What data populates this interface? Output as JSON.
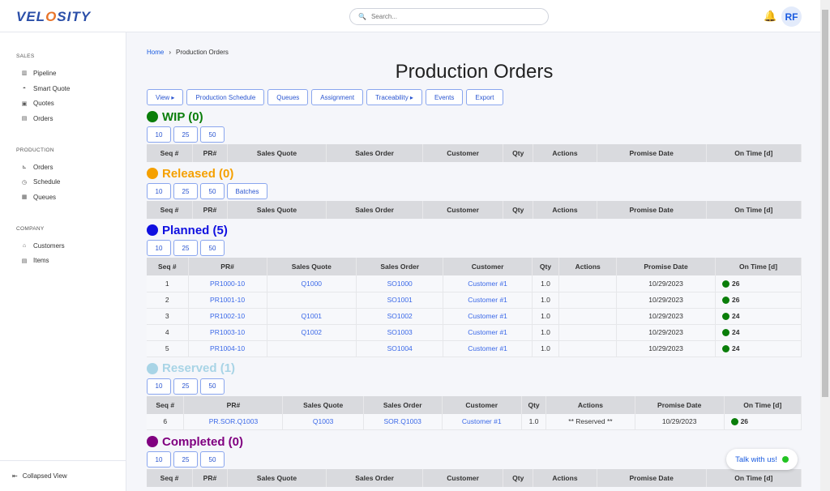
{
  "header": {
    "logo": "VELOSITY",
    "search_placeholder": "Search...",
    "avatar": "RF"
  },
  "sidebar": {
    "groups": [
      {
        "label": "SALES",
        "items": [
          {
            "label": "Pipeline",
            "icon": "pipeline-icon"
          },
          {
            "label": "Smart Quote",
            "icon": "smart-quote-icon"
          },
          {
            "label": "Quotes",
            "icon": "quotes-icon"
          },
          {
            "label": "Orders",
            "icon": "orders-icon"
          }
        ]
      },
      {
        "label": "PRODUCTION",
        "items": [
          {
            "label": "Orders",
            "icon": "cart-icon"
          },
          {
            "label": "Schedule",
            "icon": "clock-icon"
          },
          {
            "label": "Queues",
            "icon": "calendar-icon"
          }
        ]
      },
      {
        "label": "COMPANY",
        "items": [
          {
            "label": "Customers",
            "icon": "home-icon"
          },
          {
            "label": "Items",
            "icon": "items-icon"
          }
        ]
      }
    ],
    "footer": "Collapsed View"
  },
  "breadcrumb": {
    "home": "Home",
    "current": "Production Orders"
  },
  "page_title": "Production Orders",
  "toolbar": [
    "View ▸",
    "Production Schedule",
    "Queues",
    "Assignment",
    "Traceability ▸",
    "Events",
    "Export"
  ],
  "columns": [
    "Seq #",
    "PR#",
    "Sales Quote",
    "Sales Order",
    "Customer",
    "Qty",
    "Actions",
    "Promise Date",
    "On Time [d]"
  ],
  "sections": [
    {
      "title": "WIP (0)",
      "color": "#0a7e0a",
      "pager": [
        "10",
        "25",
        "50"
      ],
      "rows": []
    },
    {
      "title": "Released (0)",
      "color": "#f5a000",
      "pager": [
        "10",
        "25",
        "50",
        "Batches"
      ],
      "rows": []
    },
    {
      "title": "Planned (5)",
      "color": "#1010e0",
      "pager": [
        "10",
        "25",
        "50"
      ],
      "rows": [
        [
          "1",
          "PR1000-10",
          "Q1000",
          "SO1000",
          "Customer #1",
          "1.0",
          "",
          "10/29/2023",
          "26"
        ],
        [
          "2",
          "PR1001-10",
          "",
          "SO1001",
          "Customer #1",
          "1.0",
          "",
          "10/29/2023",
          "26"
        ],
        [
          "3",
          "PR1002-10",
          "Q1001",
          "SO1002",
          "Customer #1",
          "1.0",
          "",
          "10/29/2023",
          "24"
        ],
        [
          "4",
          "PR1003-10",
          "Q1002",
          "SO1003",
          "Customer #1",
          "1.0",
          "",
          "10/29/2023",
          "24"
        ],
        [
          "5",
          "PR1004-10",
          "",
          "SO1004",
          "Customer #1",
          "1.0",
          "",
          "10/29/2023",
          "24"
        ]
      ]
    },
    {
      "title": "Reserved (1)",
      "color": "#a8d4e6",
      "pager": [
        "10",
        "25",
        "50"
      ],
      "rows": [
        [
          "6",
          "PR.SOR.Q1003",
          "Q1003",
          "SOR.Q1003",
          "Customer #1",
          "1.0",
          "** Reserved **",
          "10/29/2023",
          "26"
        ]
      ]
    },
    {
      "title": "Completed (0)",
      "color": "#800080",
      "pager": [
        "10",
        "25",
        "50"
      ],
      "rows": []
    }
  ],
  "chat": "Talk with us!"
}
